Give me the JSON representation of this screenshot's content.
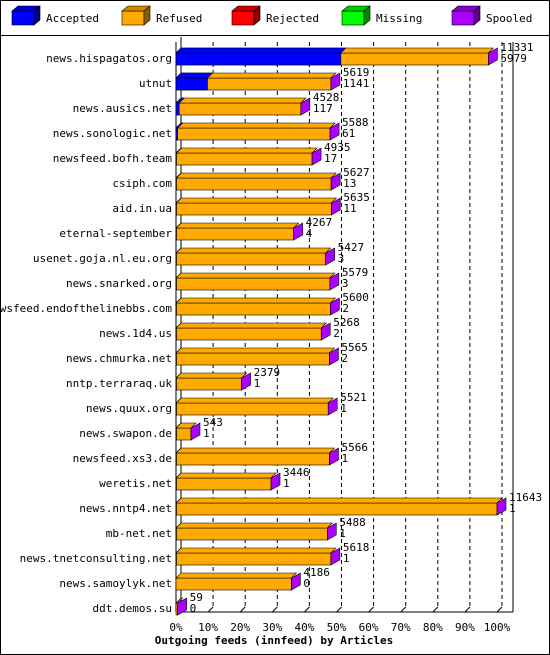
{
  "chart_data": {
    "type": "bar3d",
    "xlabel": "Outgoing feeds (innfeed) by Articles",
    "legend": [
      {
        "name": "Accepted",
        "color": "#0000ff"
      },
      {
        "name": "Refused",
        "color": "#ffaa00"
      },
      {
        "name": "Rejected",
        "color": "#ff0000"
      },
      {
        "name": "Missing",
        "color": "#00ff00"
      },
      {
        "name": "Spooled",
        "color": "#aa00ff"
      }
    ],
    "categories": [
      "news.hispagatos.org",
      "utnut",
      "news.ausics.net",
      "news.sonologic.net",
      "newsfeed.bofh.team",
      "csiph.com",
      "aid.in.ua",
      "eternal-september",
      "usenet.goja.nl.eu.org",
      "news.snarked.org",
      "newsfeed.endofthelinebbs.com",
      "news.1d4.us",
      "news.chmurka.net",
      "nntp.terraraq.uk",
      "news.quux.org",
      "news.swapon.de",
      "newsfeed.xs3.de",
      "weretis.net",
      "news.nntp4.net",
      "mb-net.net",
      "news.tnetconsulting.net",
      "news.samoylyk.net",
      "ddt.demos.su"
    ],
    "offered": [
      11331,
      5619,
      4528,
      5588,
      4935,
      5627,
      5635,
      4267,
      5427,
      5579,
      5600,
      5268,
      5565,
      2379,
      5521,
      543,
      5566,
      3446,
      11643,
      5488,
      5618,
      4186,
      59
    ],
    "accepted": [
      5979,
      1141,
      117,
      61,
      17,
      13,
      11,
      4,
      3,
      3,
      2,
      2,
      2,
      1,
      1,
      1,
      1,
      1,
      1,
      1,
      1,
      0,
      0
    ],
    "xlim": [
      0,
      11643
    ],
    "xticks": [
      {
        "value": 0,
        "label": "0%"
      },
      {
        "value": 1164.3,
        "label": "10%"
      },
      {
        "value": 2328.6,
        "label": "20%"
      },
      {
        "value": 3492.9,
        "label": "30%"
      },
      {
        "value": 4657.2,
        "label": "40%"
      },
      {
        "value": 5821.5,
        "label": "50%"
      },
      {
        "value": 6985.8,
        "label": "60%"
      },
      {
        "value": 8150.1,
        "label": "70%"
      },
      {
        "value": 9314.4,
        "label": "80%"
      },
      {
        "value": 10478.7,
        "label": "90%"
      },
      {
        "value": 11643,
        "label": "100%"
      }
    ],
    "grid": true
  }
}
